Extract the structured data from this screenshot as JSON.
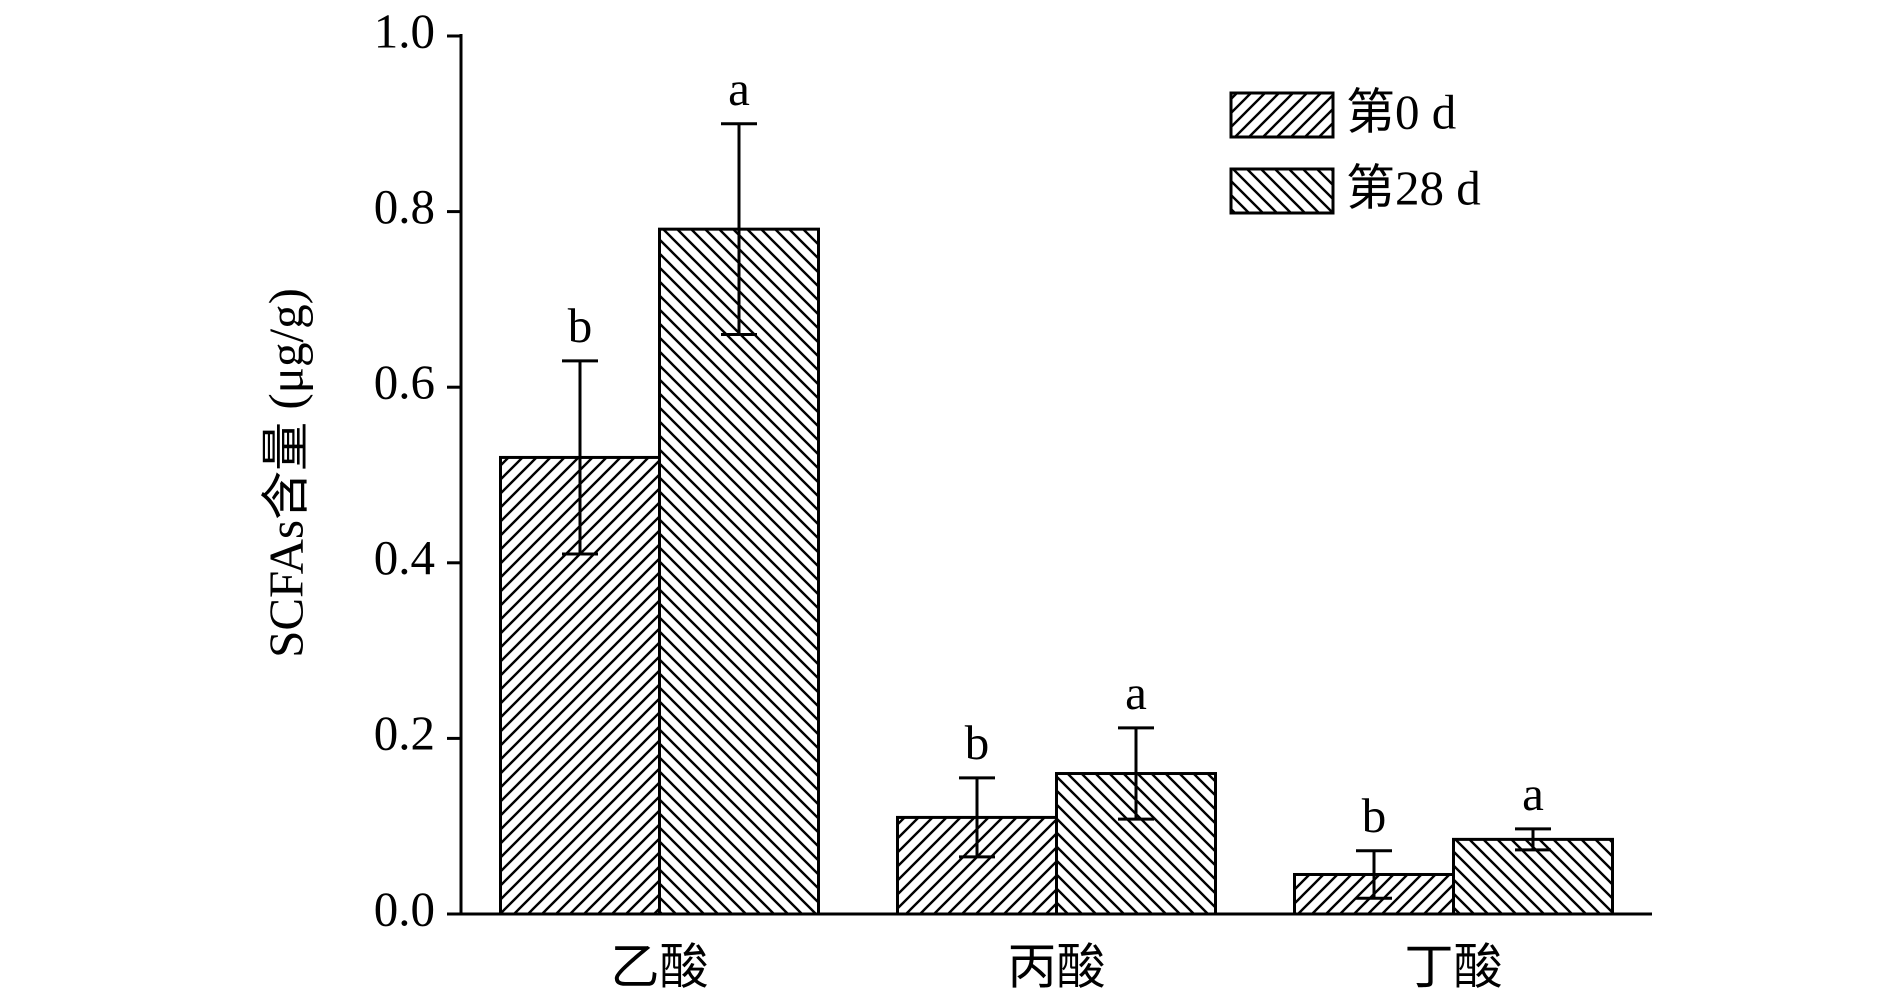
{
  "chart_data": {
    "type": "bar",
    "y_label": "SCFAs含量 (μg/g)",
    "categories": [
      "乙酸",
      "丙酸",
      "丁酸"
    ],
    "series": [
      {
        "name": "第0 d",
        "color": "#000000",
        "hatch": "/",
        "values": [
          0.52,
          0.11,
          0.045
        ],
        "errors": [
          0.11,
          0.045,
          0.027
        ],
        "annotations": [
          "b",
          "b",
          "b"
        ]
      },
      {
        "name": "第28 d",
        "color": "#000000",
        "hatch": "\\",
        "values": [
          0.78,
          0.16,
          0.085
        ],
        "errors": [
          0.12,
          0.052,
          0.012
        ],
        "annotations": [
          "a",
          "a",
          "a"
        ]
      }
    ],
    "ylim": [
      0,
      1.0
    ],
    "yticks": [
      {
        "value": 0,
        "label": "0.0"
      },
      0.2,
      0.4,
      0.6,
      0.8,
      {
        "value": 1.0,
        "label": "1.0"
      }
    ],
    "legend": "upper right",
    "grid": false
  }
}
